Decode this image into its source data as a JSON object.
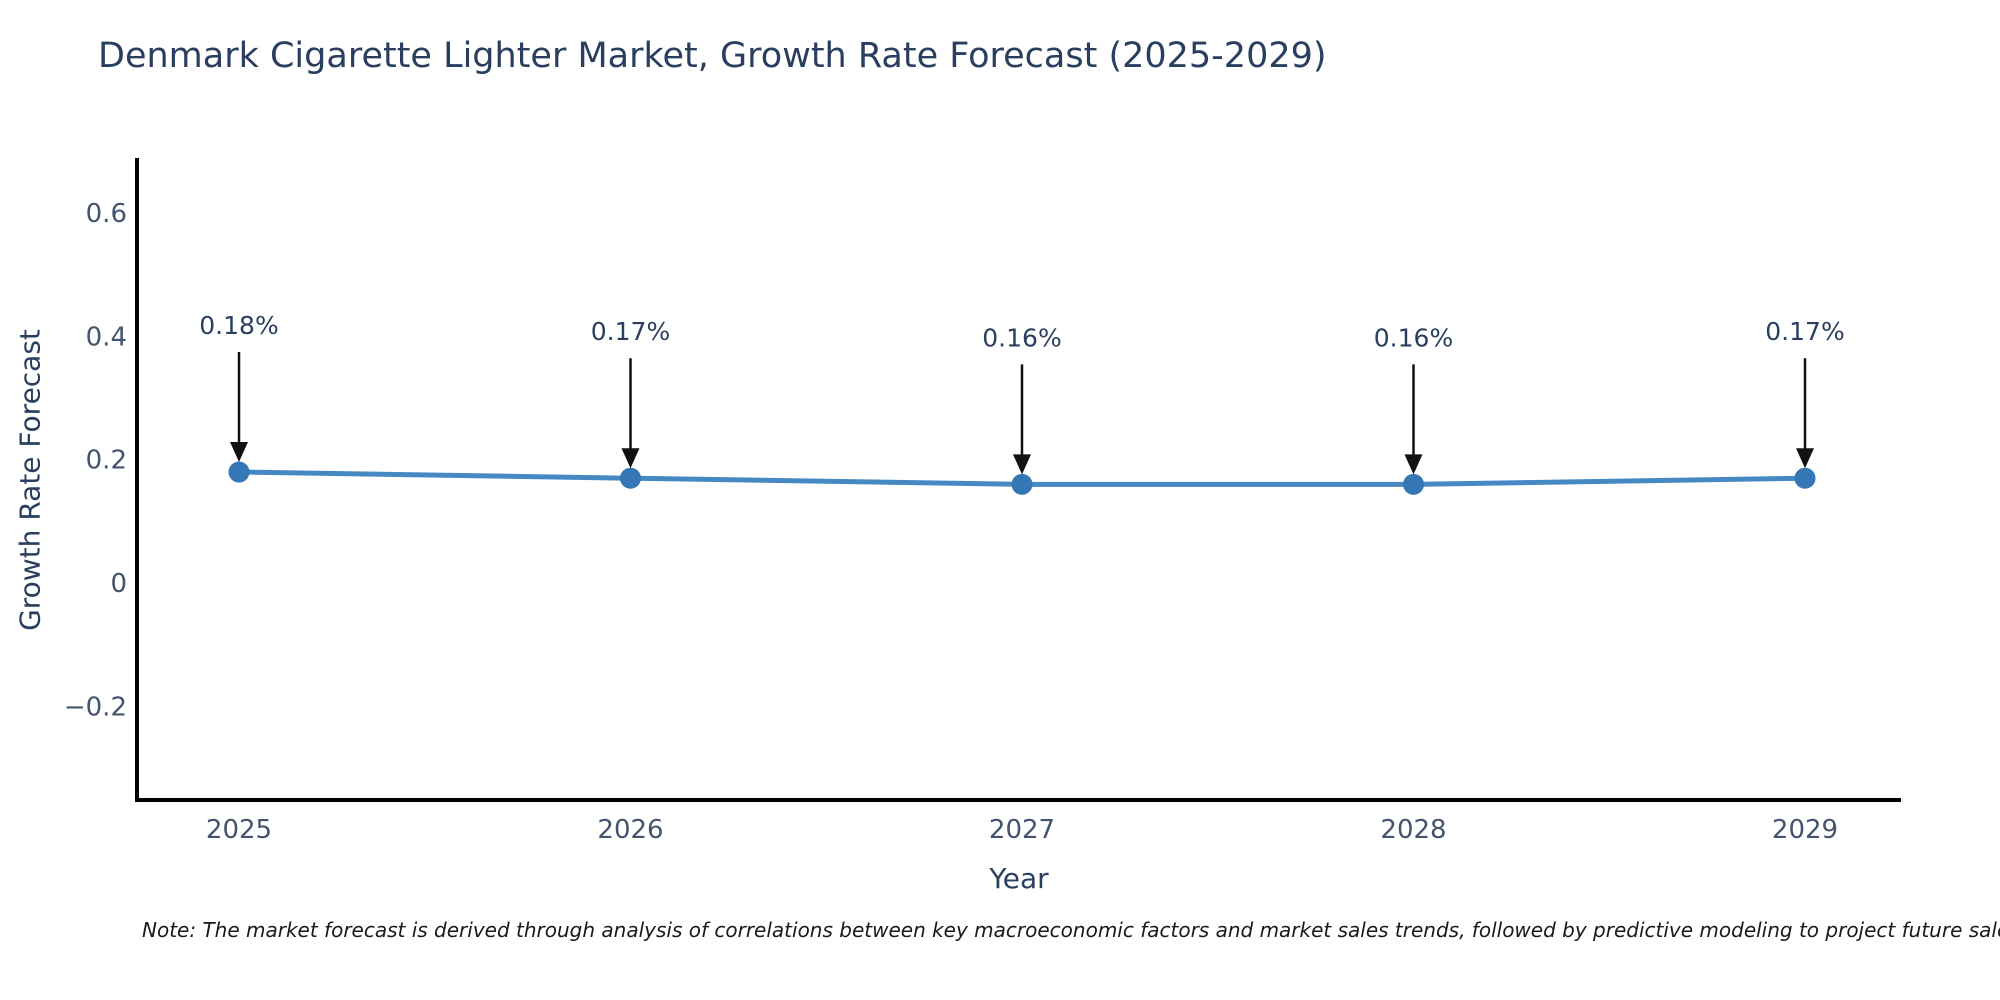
{
  "chart": {
    "title": "Denmark Cigarette Lighter Market, Growth Rate Forecast (2025-2029)",
    "x_axis_title": "Year",
    "y_axis_title": "Growth Rate Forecast",
    "note": "Note: The market forecast is derived through analysis of correlations between key macroeconomic factors and market sales trends, followed by predictive modeling to project future sales."
  },
  "chart_data": {
    "type": "line",
    "title": "Denmark Cigarette Lighter Market, Growth Rate Forecast (2025-2029)",
    "xlabel": "Year",
    "ylabel": "Growth Rate Forecast",
    "x": [
      2025,
      2026,
      2027,
      2028,
      2029
    ],
    "values": [
      0.18,
      0.17,
      0.16,
      0.16,
      0.17
    ],
    "point_labels": [
      "0.18%",
      "0.17%",
      "0.16%",
      "0.16%",
      "0.17%"
    ],
    "ytick_values": [
      0.6,
      0.4,
      0.2,
      0,
      -0.2
    ],
    "ytick_labels": [
      "0.6",
      "0.4",
      "0.2",
      "0",
      "−0.2"
    ],
    "ylim": [
      -0.35,
      0.69
    ],
    "grid": false,
    "legend": "none",
    "colors": {
      "line": "#4689c2",
      "marker": "#3576b5",
      "axis": "#000000",
      "arrow": "#111111",
      "tick_text": "#44546f",
      "title_text": "#2a3f5f"
    }
  }
}
